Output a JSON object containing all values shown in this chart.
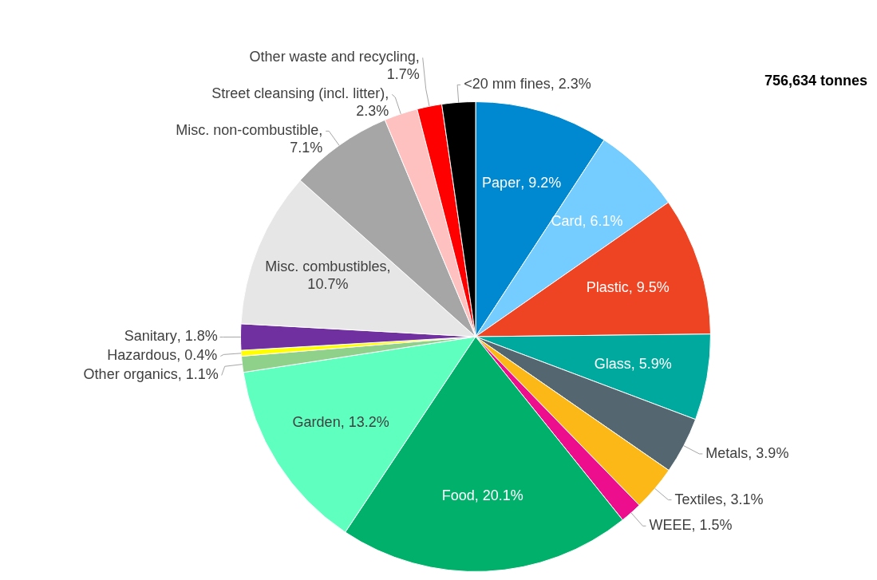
{
  "chart_data": {
    "type": "pie",
    "title": "756,634 tonnes",
    "legend": false,
    "categories": [
      "Paper",
      "Card",
      "Plastic",
      "Glass",
      "Metals",
      "Textiles",
      "WEEE",
      "Food",
      "Garden",
      "Other organics",
      "Hazardous",
      "Sanitary",
      "Misc. combustibles",
      "Misc. non-combustible",
      "Street cleansing (incl. litter)",
      "Other waste and recycling",
      "<20 mm fines"
    ],
    "values": [
      9.2,
      6.1,
      9.5,
      5.9,
      3.9,
      3.1,
      1.5,
      20.1,
      13.2,
      1.1,
      0.4,
      1.8,
      10.7,
      7.1,
      2.3,
      1.7,
      2.3
    ],
    "value_labels": [
      ", 9.2%",
      ", 6.1%",
      ", 9.5%",
      ", 5.9%",
      ", 3.9%",
      ", 3.1%",
      ", 1.5%",
      ", 20.1%",
      ", 13.2%",
      ", 1.1%",
      ", 0.4%",
      ", 1.8%",
      ", 10.7%",
      ", 7.1%",
      ", 2.3%",
      ", 1.7%",
      ", 2.3%"
    ],
    "colors": [
      "#0088d1",
      "#75cdff",
      "#ef4423",
      "#00a99d",
      "#546670",
      "#fbb817",
      "#ec0e8c",
      "#00b06b",
      "#5fffc0",
      "#8fd18a",
      "#ffff00",
      "#7030a0",
      "#e6e6e6",
      "#a6a6a6",
      "#ffc0c0",
      "#ff0000",
      "#000000"
    ]
  }
}
